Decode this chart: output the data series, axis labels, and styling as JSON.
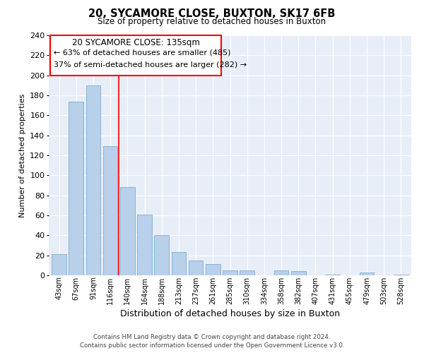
{
  "title": "20, SYCAMORE CLOSE, BUXTON, SK17 6FB",
  "subtitle": "Size of property relative to detached houses in Buxton",
  "xlabel": "Distribution of detached houses by size in Buxton",
  "ylabel": "Number of detached properties",
  "bar_color": "#b8d0ea",
  "bar_edge_color": "#7aadd4",
  "categories": [
    "43sqm",
    "67sqm",
    "91sqm",
    "116sqm",
    "140sqm",
    "164sqm",
    "188sqm",
    "213sqm",
    "237sqm",
    "261sqm",
    "285sqm",
    "310sqm",
    "334sqm",
    "358sqm",
    "382sqm",
    "407sqm",
    "431sqm",
    "455sqm",
    "479sqm",
    "503sqm",
    "528sqm"
  ],
  "values": [
    21,
    174,
    190,
    129,
    88,
    61,
    40,
    23,
    15,
    11,
    5,
    5,
    0,
    5,
    4,
    0,
    1,
    0,
    3,
    0,
    1
  ],
  "ylim": [
    0,
    240
  ],
  "yticks": [
    0,
    20,
    40,
    60,
    80,
    100,
    120,
    140,
    160,
    180,
    200,
    220,
    240
  ],
  "annotation_title": "20 SYCAMORE CLOSE: 135sqm",
  "annotation_line1": "← 63% of detached houses are smaller (485)",
  "annotation_line2": "37% of semi-detached houses are larger (282) →",
  "footer_line1": "Contains HM Land Registry data © Crown copyright and database right 2024.",
  "footer_line2": "Contains public sector information licensed under the Open Government Licence v3.0.",
  "red_line_bar_index": 4,
  "background_color": "#e8eef7"
}
